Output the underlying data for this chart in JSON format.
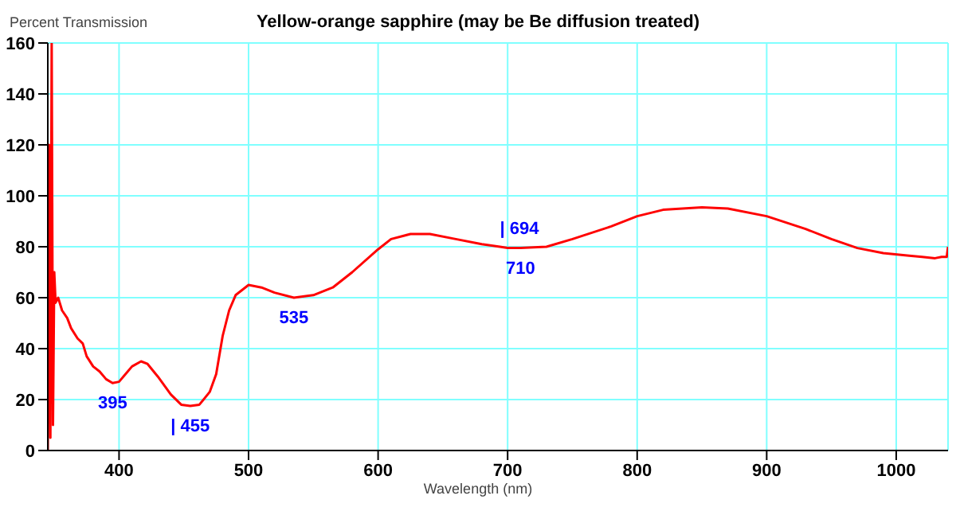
{
  "chart_data": {
    "type": "line",
    "title": "Yellow-orange sapphire (may be Be diffusion treated)",
    "xlabel": "Wavelength (nm)",
    "ylabel": "Percent Transmission",
    "x": [
      345,
      346,
      347,
      348,
      349,
      350,
      351,
      353,
      356,
      360,
      363,
      368,
      372,
      375,
      380,
      385,
      390,
      395,
      400,
      405,
      410,
      417,
      422,
      430,
      440,
      448,
      455,
      462,
      470,
      475,
      480,
      485,
      490,
      500,
      510,
      520,
      535,
      550,
      565,
      580,
      600,
      610,
      625,
      640,
      660,
      680,
      694,
      700,
      710,
      730,
      750,
      780,
      800,
      820,
      850,
      870,
      900,
      930,
      950,
      970,
      990,
      1010,
      1020,
      1030,
      1035,
      1039,
      1040
    ],
    "series": [
      {
        "color": "#ff0000",
        "values": [
          0,
          120,
          5,
          160,
          10,
          70,
          58,
          60,
          55,
          52,
          48,
          44,
          42,
          37,
          33,
          31,
          28,
          26.5,
          27,
          30,
          33,
          35,
          34,
          29,
          22,
          18,
          17.5,
          18,
          23,
          30,
          45,
          55,
          61,
          65,
          64,
          62,
          60,
          61,
          64,
          70,
          79,
          83,
          85,
          85,
          83,
          81,
          80,
          79.5,
          79.5,
          80,
          83,
          88,
          92,
          94.5,
          95.5,
          95,
          92,
          87,
          83,
          79.5,
          77.5,
          76.5,
          76,
          75.5,
          76,
          76,
          80
        ]
      }
    ],
    "annotations": [
      {
        "text": "395",
        "x": 395,
        "y": 26.5
      },
      {
        "text": "| 455",
        "x": 455,
        "y": 17.5
      },
      {
        "text": "535",
        "x": 535,
        "y": 60
      },
      {
        "text": "| 694",
        "x": 694,
        "y": 80
      },
      {
        "text": "710",
        "x": 710,
        "y": 79.5
      }
    ],
    "xlim": [
      345,
      1040
    ],
    "ylim": [
      0,
      160
    ],
    "xticks": [
      400,
      500,
      600,
      700,
      800,
      900,
      1000
    ],
    "yticks": [
      0,
      20,
      40,
      60,
      80,
      100,
      120,
      140,
      160
    ],
    "grid": true,
    "legend": false,
    "marker": "none",
    "line_style": "solid"
  }
}
